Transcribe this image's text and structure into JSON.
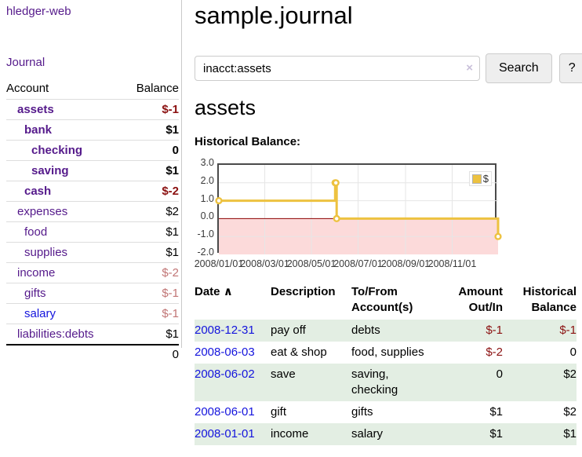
{
  "app": {
    "title": "hledger-web"
  },
  "sidebar": {
    "journal_label": "Journal",
    "accounts": {
      "account_header": "Account",
      "balance_header": "Balance",
      "rows": [
        {
          "name": "assets",
          "balance": "$-1",
          "depth": 1,
          "in_filter": true,
          "balance_tone": "negative-strong"
        },
        {
          "name": "bank",
          "balance": "$1",
          "depth": 2,
          "in_filter": true,
          "balance_tone": "normal"
        },
        {
          "name": "checking",
          "balance": "0",
          "depth": 3,
          "in_filter": true,
          "balance_tone": "normal"
        },
        {
          "name": "saving",
          "balance": "$1",
          "depth": 3,
          "in_filter": true,
          "balance_tone": "normal"
        },
        {
          "name": "cash",
          "balance": "$-2",
          "depth": 2,
          "in_filter": true,
          "balance_tone": "negative-strong"
        },
        {
          "name": "expenses",
          "balance": "$2",
          "depth": 1,
          "in_filter": false,
          "balance_tone": "normal"
        },
        {
          "name": "food",
          "balance": "$1",
          "depth": 2,
          "in_filter": false,
          "balance_tone": "normal"
        },
        {
          "name": "supplies",
          "balance": "$1",
          "depth": 2,
          "in_filter": false,
          "balance_tone": "normal"
        },
        {
          "name": "income",
          "balance": "$-2",
          "depth": 1,
          "in_filter": false,
          "balance_tone": "negative-faded"
        },
        {
          "name": "gifts",
          "balance": "$-1",
          "depth": 2,
          "in_filter": false,
          "balance_tone": "negative-faded"
        },
        {
          "name": "salary",
          "balance": "$-1",
          "depth": 2,
          "in_filter": false,
          "balance_tone": "negative-faded",
          "link_style": "unvisited"
        },
        {
          "name": "liabilities:debts",
          "balance": "$1",
          "depth": 1,
          "in_filter": false,
          "balance_tone": "normal"
        }
      ],
      "total": "0"
    }
  },
  "main": {
    "title": "sample.journal",
    "search": {
      "value": "inacct:assets",
      "clear_icon": "×",
      "button_label": "Search",
      "help_label": "?"
    },
    "account_heading": "assets",
    "chart_label": "Historical Balance:"
  },
  "chart_data": {
    "type": "line",
    "style": "step",
    "title": "Historical Balance",
    "legend": [
      {
        "label": "$",
        "color": "#edc240"
      }
    ],
    "legend_position": "top-right",
    "grid": true,
    "ylim": [
      -2,
      3
    ],
    "y_ticks": [
      3.0,
      2.0,
      1.0,
      0.0,
      -1.0,
      -2.0
    ],
    "x_ticks": [
      "2008/01/01",
      "2008/03/01",
      "2008/05/01",
      "2008/07/01",
      "2008/09/01",
      "2008/11/01"
    ],
    "x_tick_days": [
      0,
      60,
      121,
      182,
      244,
      305
    ],
    "x_range_days": 365,
    "points": [
      {
        "date": "2008-01-01",
        "day": 0,
        "value": 1
      },
      {
        "date": "2008-06-01",
        "day": 152,
        "value": 2
      },
      {
        "date": "2008-06-02",
        "day": 153,
        "value": 2
      },
      {
        "date": "2008-06-03",
        "day": 154,
        "value": 0
      },
      {
        "date": "2008-12-31",
        "day": 365,
        "value": -1
      }
    ],
    "negative_region_shaded": true
  },
  "register": {
    "headers": {
      "date": "Date",
      "sort_indicator": "∧",
      "description": "Description",
      "account": "To/From Account(s)",
      "amount": "Amount Out/In",
      "balance": "Historical Balance"
    },
    "rows": [
      {
        "date": "2008-12-31",
        "description": "pay off",
        "accounts": "debts",
        "amount": "$-1",
        "balance": "$-1"
      },
      {
        "date": "2008-06-03",
        "description": "eat & shop",
        "accounts": "food, supplies",
        "amount": "$-2",
        "balance": "0"
      },
      {
        "date": "2008-06-02",
        "description": "save",
        "accounts": "saving, checking",
        "amount": "0",
        "balance": "$2"
      },
      {
        "date": "2008-06-01",
        "description": "gift",
        "accounts": "gifts",
        "amount": "$1",
        "balance": "$2"
      },
      {
        "date": "2008-01-01",
        "description": "income",
        "accounts": "salary",
        "amount": "$1",
        "balance": "$1"
      }
    ]
  },
  "colors": {
    "link_purple": "#551a8b",
    "link_blue": "#1414dd",
    "negative_strong": "#8b1111",
    "negative_faded": "#c17575",
    "row_green": "#e3eee3",
    "chart_line_gold": "#edc240",
    "chart_negative_fill": "#fcdada",
    "chart_zero_line": "#8b0000",
    "chart_grid": "#e6e6e6",
    "chart_border": "#4a4a4a"
  }
}
